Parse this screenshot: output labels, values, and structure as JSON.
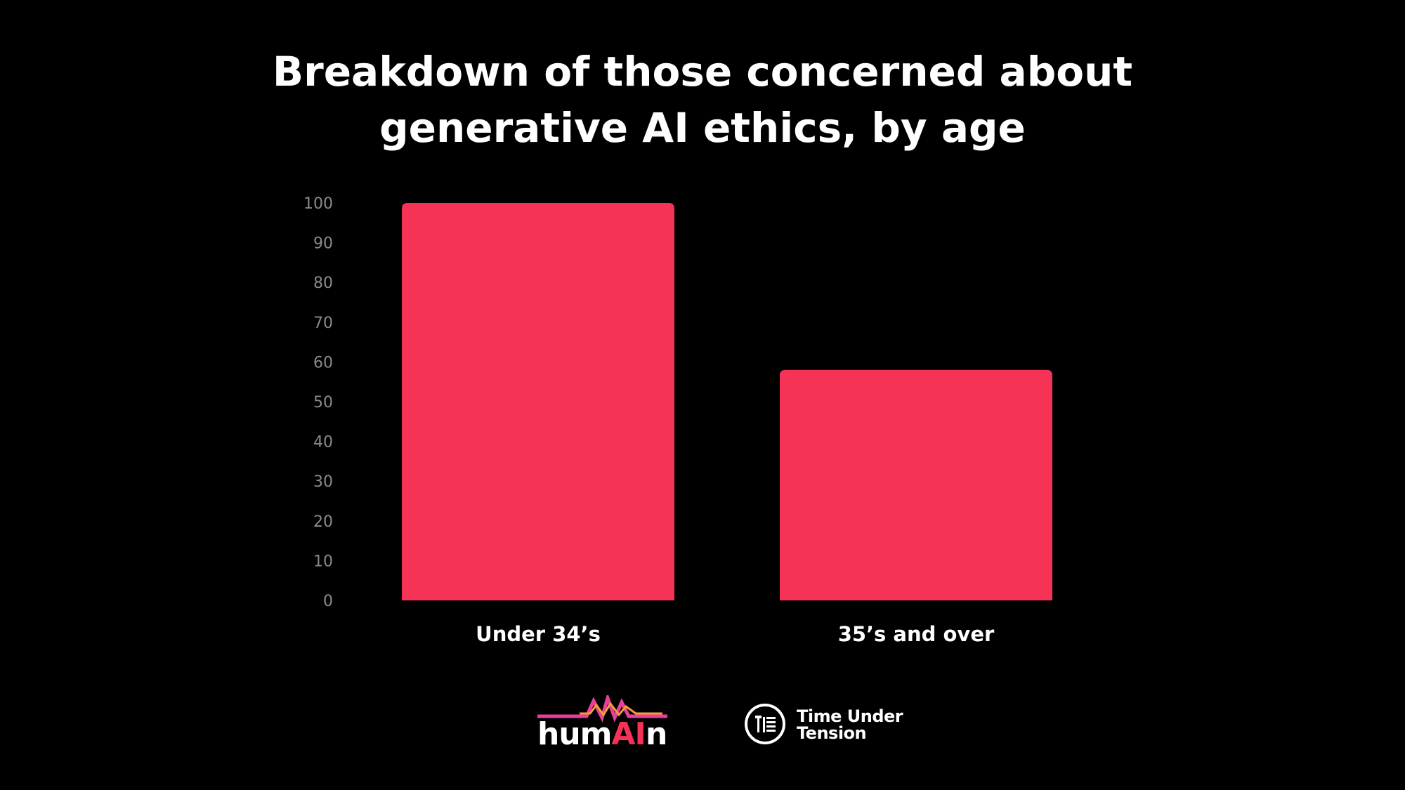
{
  "title_lines": [
    "Breakdown of those concerned about",
    "generative AI ethics, by age"
  ],
  "chart_data": {
    "type": "bar",
    "title": "Breakdown of those concerned about generative AI ethics, by age",
    "categories": [
      "Under 34’s",
      "35’s and over"
    ],
    "values": [
      100,
      58
    ],
    "xlabel": "",
    "ylabel": "",
    "ylim": [
      0,
      100
    ],
    "yticks": [
      "0",
      "10",
      "20",
      "30",
      "40",
      "50",
      "60",
      "70",
      "80",
      "90",
      "100"
    ],
    "grid": false,
    "bar_color": "#f43357",
    "tick_color": "#8a8a8a",
    "category_label_color": "#ffffff"
  },
  "logos": {
    "human": {
      "prefix": "hum",
      "highlight": "AI",
      "suffix": "n",
      "accent": "#f43357"
    },
    "time_under_tension": {
      "line1": "Time Under",
      "line2": "Tension",
      "icon": "dumbbell-icon"
    }
  }
}
